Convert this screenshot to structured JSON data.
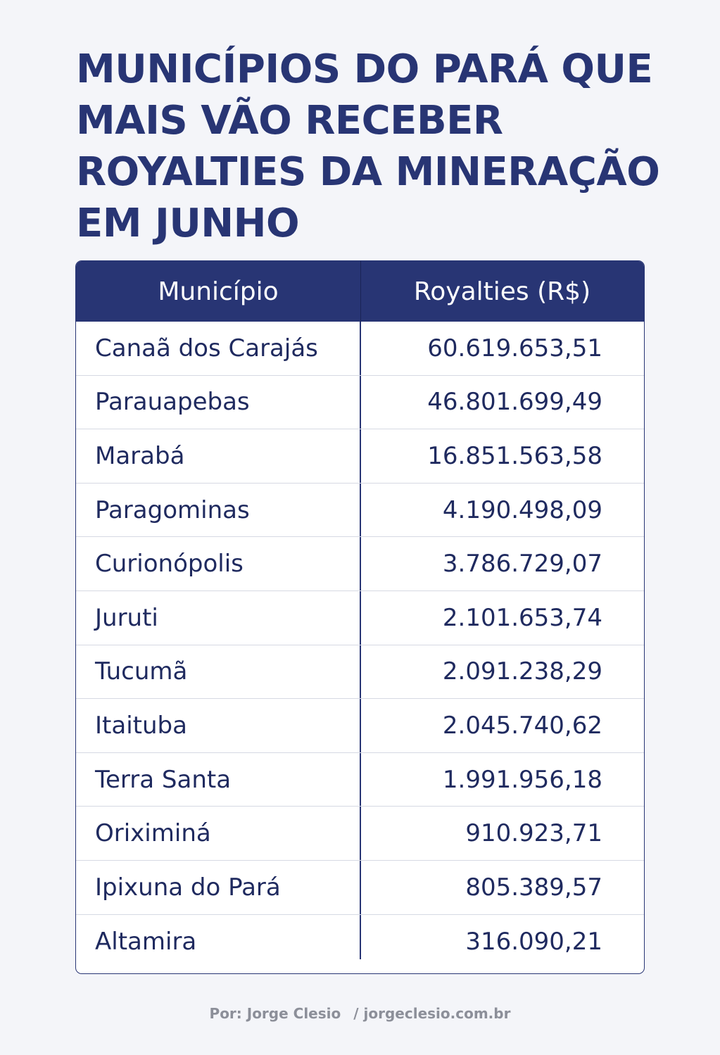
{
  "title": "MUNICÍPIOS DO PARÁ QUE\nMAIS VÃO RECEBER\nROYALTIES DA MINERAÇÃO\nEM JUNHO",
  "table": {
    "headers": {
      "municipio": "Município",
      "royalties": "Royalties (R$)"
    },
    "rows": [
      {
        "municipio": "Canaã dos Carajás",
        "royalties": "60.619.653,51"
      },
      {
        "municipio": "Parauapebas",
        "royalties": "46.801.699,49"
      },
      {
        "municipio": "Marabá",
        "royalties": "16.851.563,58"
      },
      {
        "municipio": "Paragominas",
        "royalties": "4.190.498,09"
      },
      {
        "municipio": "Curionópolis",
        "royalties": "3.786.729,07"
      },
      {
        "municipio": "Juruti",
        "royalties": "2.101.653,74"
      },
      {
        "municipio": "Tucumã",
        "royalties": "2.091.238,29"
      },
      {
        "municipio": "Itaituba",
        "royalties": "2.045.740,62"
      },
      {
        "municipio": "Terra Santa",
        "royalties": "1.991.956,18"
      },
      {
        "municipio": "Oriximiná",
        "royalties": "910.923,71"
      },
      {
        "municipio": "Ipixuna do Pará",
        "royalties": "805.389,57"
      },
      {
        "municipio": "Altamira",
        "royalties": "316.090,21"
      }
    ]
  },
  "footer": {
    "author": "Por: Jorge Clesio",
    "site": "/ jorgeclesio.com.br"
  },
  "colors": {
    "primary": "#283574",
    "background": "#f4f5f9",
    "text": "#1f2a5f",
    "footer_text": "#8c8f99"
  }
}
